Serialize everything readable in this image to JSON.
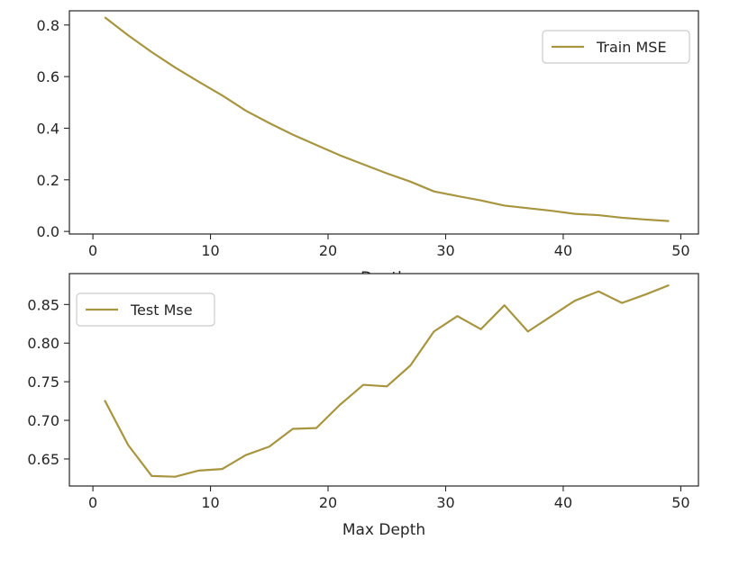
{
  "colors": {
    "series": "#a89540",
    "axis": "#262626",
    "legend_border": "#cccccc"
  },
  "chart_data": [
    {
      "type": "line",
      "title": "",
      "xlabel": "Depth",
      "ylabel": "",
      "xlim": [
        -2,
        51.5
      ],
      "ylim": [
        -0.01,
        0.855
      ],
      "xticks": [
        0,
        10,
        20,
        30,
        40,
        50
      ],
      "yticks": [
        0.0,
        0.2,
        0.4,
        0.6,
        0.8
      ],
      "ytick_labels": [
        "0.0",
        "0.2",
        "0.4",
        "0.6",
        "0.8"
      ],
      "legend_position": "upper-right",
      "series": [
        {
          "name": "Train MSE",
          "x": [
            1,
            3,
            5,
            7,
            9,
            11,
            13,
            15,
            17,
            19,
            21,
            23,
            25,
            27,
            29,
            31,
            33,
            35,
            37,
            39,
            41,
            43,
            45,
            47,
            49
          ],
          "y": [
            0.83,
            0.76,
            0.695,
            0.635,
            0.58,
            0.527,
            0.468,
            0.42,
            0.375,
            0.335,
            0.295,
            0.26,
            0.225,
            0.193,
            0.155,
            0.137,
            0.12,
            0.1,
            0.09,
            0.08,
            0.068,
            0.063,
            0.053,
            0.046,
            0.04
          ]
        }
      ]
    },
    {
      "type": "line",
      "title": "",
      "xlabel": "Max Depth",
      "ylabel": "",
      "xlim": [
        -2,
        51.5
      ],
      "ylim": [
        0.615,
        0.89
      ],
      "xticks": [
        0,
        10,
        20,
        30,
        40,
        50
      ],
      "yticks": [
        0.65,
        0.7,
        0.75,
        0.8,
        0.85
      ],
      "ytick_labels": [
        "0.65",
        "0.70",
        "0.75",
        "0.80",
        "0.85"
      ],
      "legend_position": "upper-left",
      "series": [
        {
          "name": "Test Mse",
          "x": [
            1,
            3,
            5,
            7,
            9,
            11,
            13,
            15,
            17,
            19,
            21,
            23,
            25,
            27,
            29,
            31,
            33,
            35,
            37,
            39,
            41,
            43,
            45,
            47,
            49
          ],
          "y": [
            0.726,
            0.668,
            0.628,
            0.627,
            0.635,
            0.637,
            0.655,
            0.666,
            0.689,
            0.69,
            0.72,
            0.746,
            0.744,
            0.771,
            0.815,
            0.835,
            0.818,
            0.849,
            0.815,
            0.835,
            0.855,
            0.867,
            0.852,
            0.863,
            0.875
          ]
        }
      ]
    }
  ]
}
